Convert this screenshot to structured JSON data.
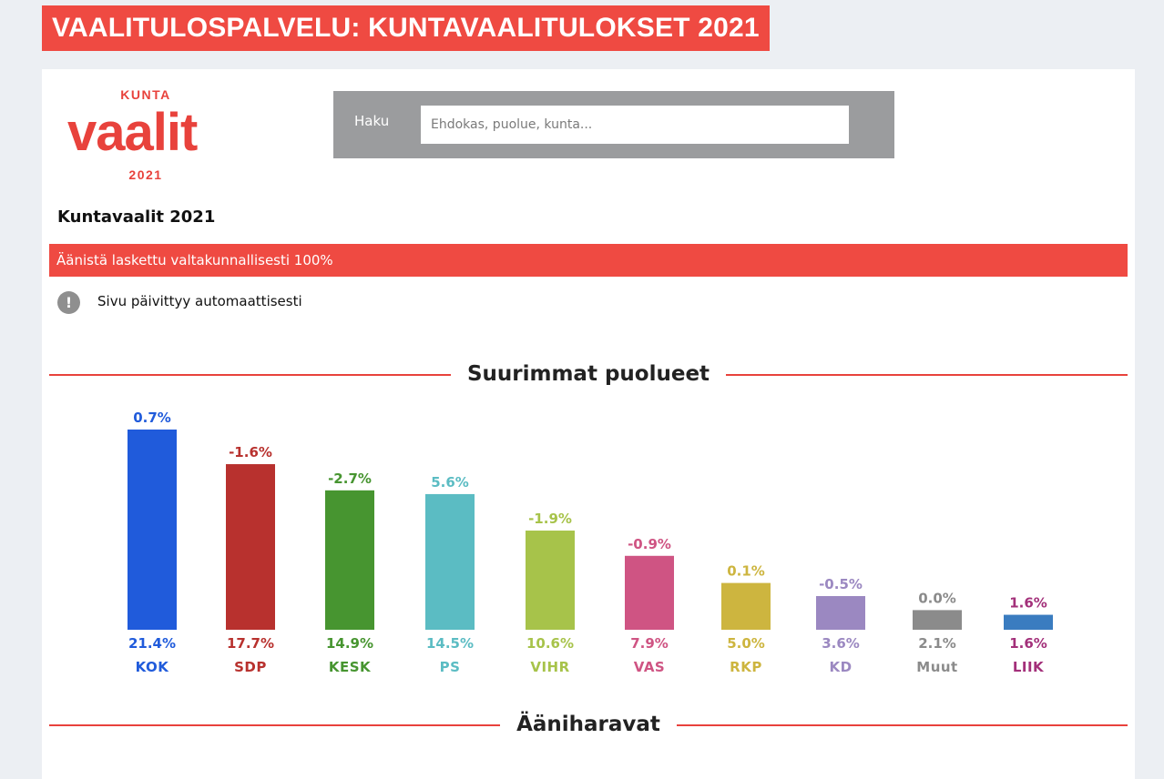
{
  "banner": {
    "title": "VAALITULOSPALVELU: KUNTAVAALITULOKSET 2021"
  },
  "logo": {
    "top": "KUNTA",
    "word": "vaalit",
    "year": "2021"
  },
  "search": {
    "label": "Haku",
    "placeholder": "Ehdokas, puolue, kunta..."
  },
  "election": {
    "title": "Kuntavaalit 2021",
    "status": "Äänistä laskettu valtakunnallisesti 100%",
    "notice": "Sivu päivittyy automaattisesti"
  },
  "sections": {
    "parties": "Suurimmat puolueet",
    "top_candidates": "Ääniharavat"
  },
  "chart_data": {
    "type": "bar",
    "title": "Suurimmat puolueet",
    "categories": [
      "KOK",
      "SDP",
      "KESK",
      "PS",
      "VIHR",
      "VAS",
      "RKP",
      "KD",
      "Muut",
      "LIIK"
    ],
    "values": [
      21.4,
      17.7,
      14.9,
      14.5,
      10.6,
      7.9,
      5.0,
      3.6,
      2.1,
      1.6
    ],
    "value_labels": [
      "21.4%",
      "17.7%",
      "14.9%",
      "14.5%",
      "10.6%",
      "7.9%",
      "5.0%",
      "3.6%",
      "2.1%",
      "1.6%"
    ],
    "changes": [
      0.7,
      -1.6,
      -2.7,
      5.6,
      -1.9,
      -0.9,
      0.1,
      -0.5,
      0.0,
      1.6
    ],
    "change_labels": [
      "0.7%",
      "-1.6%",
      "-2.7%",
      "5.6%",
      "-1.9%",
      "-0.9%",
      "0.1%",
      "-0.5%",
      "0.0%",
      "1.6%"
    ],
    "colors": [
      "#205bdb",
      "#b8312e",
      "#479530",
      "#5bbcc3",
      "#a7c34a",
      "#cf5483",
      "#cdb53f",
      "#9b88c1",
      "#8b8b8b",
      "#3a7cc0"
    ],
    "label_colors": [
      "#205bdb",
      "#b8312e",
      "#479530",
      "#5bbcc3",
      "#a7c34a",
      "#cf5483",
      "#cdb53f",
      "#9b88c1",
      "#8b8b8b",
      "#a3307a"
    ],
    "ylim": [
      0,
      21.4
    ],
    "grid": false,
    "legend": "none"
  }
}
